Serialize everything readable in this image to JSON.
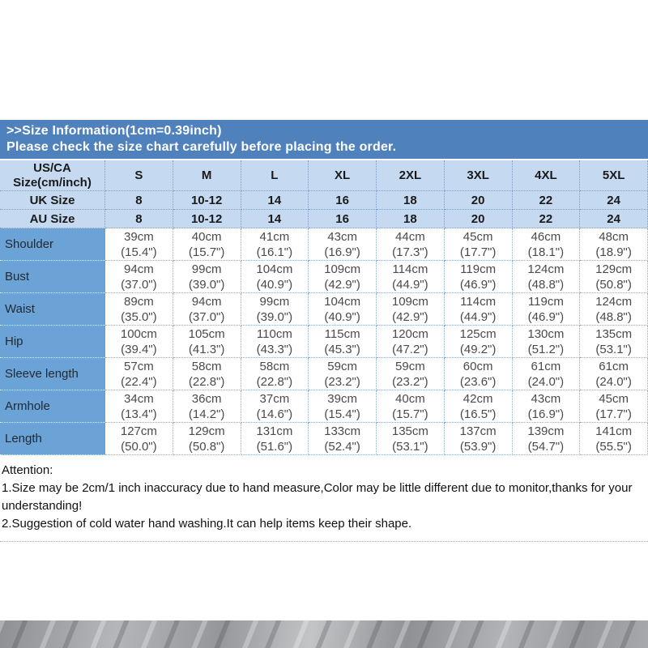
{
  "header": {
    "title": ">>Size Information(1cm=0.39inch)",
    "subtitle": "Please check the size chart carefully before placing the order."
  },
  "table": {
    "corner": {
      "line1": "US/CA",
      "line2": "Size(cm/inch)"
    },
    "sizes": [
      "S",
      "M",
      "L",
      "XL",
      "2XL",
      "3XL",
      "4XL",
      "5XL"
    ],
    "uk": {
      "label": "UK Size",
      "values": [
        "8",
        "10-12",
        "14",
        "16",
        "18",
        "20",
        "22",
        "24"
      ]
    },
    "au": {
      "label": "AU Size",
      "values": [
        "8",
        "10-12",
        "14",
        "16",
        "18",
        "20",
        "22",
        "24"
      ]
    },
    "measurements": [
      {
        "label": "Shoulder",
        "cm": [
          "39cm",
          "40cm",
          "41cm",
          "43cm",
          "44cm",
          "45cm",
          "46cm",
          "48cm"
        ],
        "inch": [
          "(15.4\")",
          "(15.7\")",
          "(16.1\")",
          "(16.9\")",
          "(17.3\")",
          "(17.7\")",
          "(18.1\")",
          "(18.9\")"
        ]
      },
      {
        "label": "Bust",
        "cm": [
          "94cm",
          "99cm",
          "104cm",
          "109cm",
          "114cm",
          "119cm",
          "124cm",
          "129cm"
        ],
        "inch": [
          "(37.0\")",
          "(39.0\")",
          "(40.9\")",
          "(42.9\")",
          "(44.9\")",
          "(46.9\")",
          "(48.8\")",
          "(50.8\")"
        ]
      },
      {
        "label": "Waist",
        "cm": [
          "89cm",
          "94cm",
          "99cm",
          "104cm",
          "109cm",
          "114cm",
          "119cm",
          "124cm"
        ],
        "inch": [
          "(35.0\")",
          "(37.0\")",
          "(39.0\")",
          "(40.9\")",
          "(42.9\")",
          "(44.9\")",
          "(46.9\")",
          "(48.8\")"
        ]
      },
      {
        "label": "Hip",
        "cm": [
          "100cm",
          "105cm",
          "110cm",
          "115cm",
          "120cm",
          "125cm",
          "130cm",
          "135cm"
        ],
        "inch": [
          "(39.4\")",
          "(41.3\")",
          "(43.3\")",
          "(45.3\")",
          "(47.2\")",
          "(49.2\")",
          "(51.2\")",
          "(53.1\")"
        ]
      },
      {
        "label": "Sleeve length",
        "cm": [
          "57cm",
          "58cm",
          "58cm",
          "59cm",
          "59cm",
          "60cm",
          "61cm",
          "61cm"
        ],
        "inch": [
          "(22.4\")",
          "(22.8\")",
          "(22.8\")",
          "(23.2\")",
          "(23.2\")",
          "(23.6\")",
          "(24.0\")",
          "(24.0\")"
        ]
      },
      {
        "label": "Armhole",
        "cm": [
          "34cm",
          "36cm",
          "37cm",
          "39cm",
          "40cm",
          "42cm",
          "43cm",
          "45cm"
        ],
        "inch": [
          "(13.4\")",
          "(14.2\")",
          "(14.6\")",
          "(15.4\")",
          "(15.7\")",
          "(16.5\")",
          "(16.9\")",
          "(17.7\")"
        ]
      },
      {
        "label": "Length",
        "cm": [
          "127cm",
          "129cm",
          "131cm",
          "133cm",
          "135cm",
          "137cm",
          "139cm",
          "141cm"
        ],
        "inch": [
          "(50.0\")",
          "(50.8\")",
          "(51.6\")",
          "(52.4\")",
          "(53.1\")",
          "(53.9\")",
          "(54.7\")",
          "(55.5\")"
        ]
      }
    ]
  },
  "attention": {
    "lines": [
      "Attention:",
      "1.Size may be 2cm/1 inch inaccuracy due to hand measure,Color may be little different due to monitor,thanks for your",
      "understanding!",
      "2.Suggestion of cold water hand washing.It can help items keep their shape."
    ]
  },
  "colors": {
    "title_bar_bg": "#4f81bd",
    "header_row_bg": "#c5d9f1",
    "label_column_bg": "#6ba3d6",
    "grid_dot_border": "#8fb2d9"
  }
}
